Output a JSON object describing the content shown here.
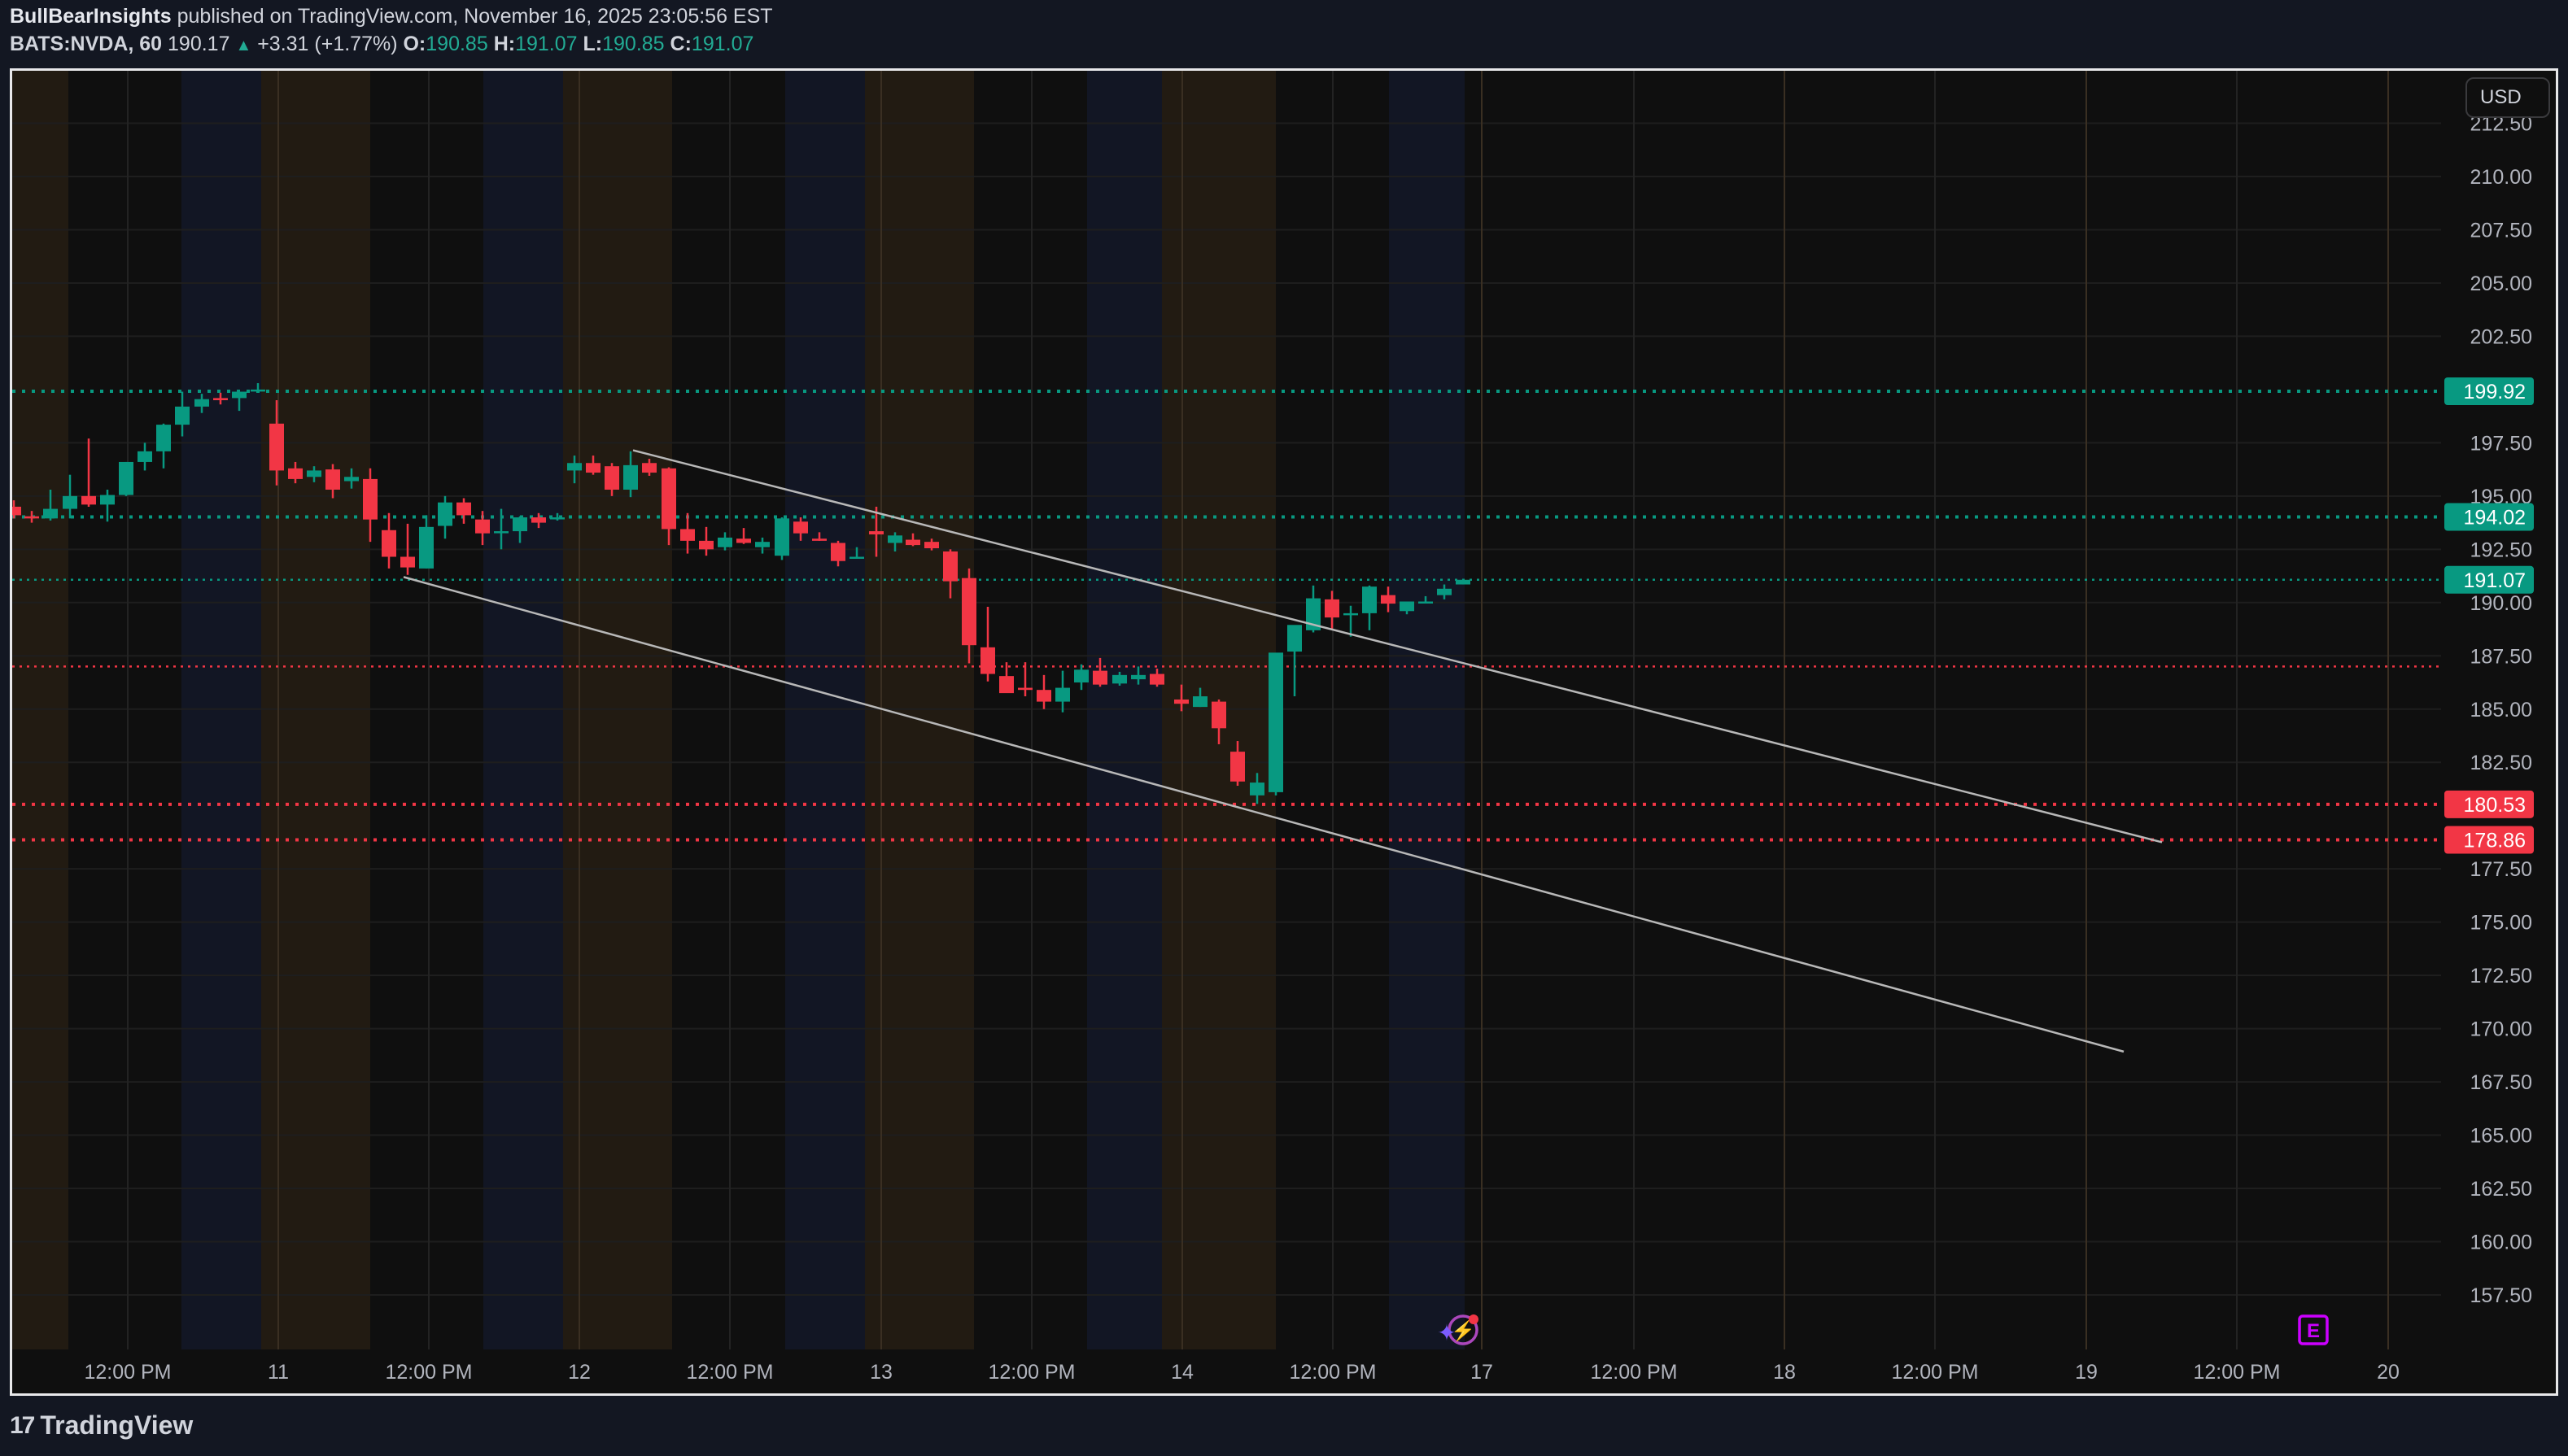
{
  "header": {
    "author": "BullBearInsights",
    "published_text": "published on TradingView.com, November 16, 2025 23:05:56 EST",
    "symbol": "BATS:NVDA, 60",
    "last": "190.17",
    "change": "+3.31 (+1.77%)",
    "o_label": "O:",
    "o": "190.85",
    "h_label": "H:",
    "h": "191.07",
    "l_label": "L:",
    "l": "190.85",
    "c_label": "C:",
    "c": "191.07",
    "up_arrow": "▲"
  },
  "currency_button": "USD",
  "branding": {
    "logo_mark": "17",
    "logo_text": "TradingView"
  },
  "colors": {
    "up": "#089981",
    "down": "#f23645",
    "grid": "#1e1e1e",
    "bg": "#0f0f0f",
    "session_pre": "#221b12",
    "session_post": "#121624",
    "trendline": "#b8b8b8",
    "earnings": "#cc00ff",
    "lightning": "#ab47bc"
  },
  "icons": {
    "earnings_label": "E",
    "lightning": "⚡",
    "sparkle": "✦"
  },
  "chart_data": {
    "type": "candlestick",
    "title": "BATS:NVDA, 60",
    "interval": "60 min",
    "ylabel": "USD",
    "ylim": [
      155.5,
      213.0
    ],
    "y_ticks": [
      "212.50",
      "210.00",
      "207.50",
      "205.00",
      "202.50",
      "197.50",
      "195.00",
      "192.50",
      "190.00",
      "187.50",
      "185.00",
      "182.50",
      "177.50",
      "175.00",
      "172.50",
      "170.00",
      "167.50",
      "165.00",
      "162.50",
      "160.00",
      "157.50"
    ],
    "x_ticks": [
      {
        "label": "12:00 PM",
        "x": 157
      },
      {
        "label": "11",
        "x": 342
      },
      {
        "label": "12:00 PM",
        "x": 527
      },
      {
        "label": "12",
        "x": 712
      },
      {
        "label": "12:00 PM",
        "x": 897
      },
      {
        "label": "13",
        "x": 1083
      },
      {
        "label": "12:00 PM",
        "x": 1268
      },
      {
        "label": "14",
        "x": 1453
      },
      {
        "label": "12:00 PM",
        "x": 1638
      },
      {
        "label": "17",
        "x": 1821
      },
      {
        "label": "12:00 PM",
        "x": 2008
      },
      {
        "label": "18",
        "x": 2193
      },
      {
        "label": "12:00 PM",
        "x": 2378
      },
      {
        "label": "19",
        "x": 2564
      },
      {
        "label": "12:00 PM",
        "x": 2749
      },
      {
        "label": "20",
        "x": 2935
      }
    ],
    "candles_columns": [
      "x",
      "open",
      "high",
      "low",
      "close"
    ],
    "candles": [
      [
        17,
        194.5,
        194.8,
        193.95,
        194.1
      ],
      [
        39,
        194.05,
        194.3,
        193.75,
        193.95
      ],
      [
        62,
        193.95,
        195.3,
        193.85,
        194.4
      ],
      [
        86,
        194.4,
        196.0,
        193.95,
        195.0
      ],
      [
        109,
        195.0,
        197.7,
        194.5,
        194.6
      ],
      [
        132,
        194.6,
        195.3,
        193.8,
        195.05
      ],
      [
        155,
        195.05,
        196.6,
        195.0,
        196.6
      ],
      [
        178,
        196.6,
        197.5,
        196.2,
        197.1
      ],
      [
        201,
        197.1,
        198.4,
        196.3,
        198.35
      ],
      [
        224,
        198.35,
        199.9,
        197.8,
        199.2
      ],
      [
        248,
        199.2,
        199.8,
        198.9,
        199.55
      ],
      [
        271,
        199.6,
        199.85,
        199.3,
        199.5
      ],
      [
        294,
        199.6,
        199.9,
        199.0,
        199.9
      ],
      [
        317,
        199.95,
        200.3,
        199.9,
        200.0
      ],
      [
        340,
        198.4,
        199.5,
        195.5,
        196.2
      ],
      [
        363,
        196.3,
        196.6,
        195.6,
        195.8
      ],
      [
        386,
        195.9,
        196.4,
        195.65,
        196.2
      ],
      [
        409,
        196.25,
        196.5,
        194.9,
        195.3
      ],
      [
        432,
        195.7,
        196.3,
        195.35,
        195.9
      ],
      [
        455,
        195.8,
        196.3,
        192.85,
        193.9
      ],
      [
        478,
        193.4,
        194.2,
        191.6,
        192.15
      ],
      [
        501,
        192.15,
        193.7,
        191.3,
        191.65
      ],
      [
        524,
        191.6,
        194.1,
        191.6,
        193.55
      ],
      [
        547,
        193.6,
        195.0,
        193.0,
        194.7
      ],
      [
        570,
        194.7,
        194.9,
        193.7,
        194.1
      ],
      [
        593,
        193.9,
        194.3,
        192.7,
        193.25
      ],
      [
        616,
        193.35,
        194.4,
        192.5,
        193.35
      ],
      [
        639,
        193.35,
        194.05,
        192.8,
        194.0
      ],
      [
        662,
        194.0,
        194.2,
        193.5,
        193.75
      ],
      [
        685,
        193.95,
        194.2,
        193.85,
        194.0
      ],
      [
        706,
        196.2,
        196.9,
        195.6,
        196.55
      ],
      [
        729,
        196.55,
        196.9,
        196.0,
        196.1
      ],
      [
        752,
        196.4,
        196.55,
        195.0,
        195.3
      ],
      [
        775,
        195.3,
        197.1,
        194.95,
        196.45
      ],
      [
        798,
        196.55,
        196.75,
        195.95,
        196.1
      ],
      [
        822,
        196.3,
        196.35,
        192.7,
        193.45
      ],
      [
        845,
        193.45,
        194.2,
        192.3,
        192.9
      ],
      [
        868,
        192.9,
        193.55,
        192.2,
        192.5
      ],
      [
        891,
        192.6,
        193.3,
        192.45,
        193.05
      ],
      [
        914,
        193.0,
        193.5,
        192.75,
        192.8
      ],
      [
        937,
        192.6,
        193.05,
        192.3,
        192.85
      ],
      [
        961,
        192.2,
        194.0,
        192.0,
        193.95
      ],
      [
        984,
        193.8,
        194.0,
        192.9,
        193.25
      ],
      [
        1007,
        193.0,
        193.3,
        192.9,
        192.9
      ],
      [
        1030,
        192.8,
        192.9,
        191.7,
        191.95
      ],
      [
        1053,
        192.15,
        192.6,
        192.15,
        192.15
      ],
      [
        1077,
        193.35,
        194.5,
        192.15,
        193.2
      ],
      [
        1100,
        192.8,
        193.3,
        192.4,
        193.15
      ],
      [
        1122,
        192.95,
        193.25,
        192.65,
        192.7
      ],
      [
        1145,
        192.85,
        193.0,
        192.45,
        192.55
      ],
      [
        1168,
        192.4,
        192.5,
        190.2,
        191.0
      ],
      [
        1191,
        191.15,
        191.6,
        187.15,
        188.0
      ],
      [
        1214,
        187.9,
        189.8,
        186.3,
        186.65
      ],
      [
        1237,
        186.55,
        187.2,
        185.9,
        185.75
      ],
      [
        1260,
        186.0,
        187.2,
        185.6,
        185.9
      ],
      [
        1283,
        185.9,
        186.6,
        185.0,
        185.35
      ],
      [
        1306,
        185.35,
        186.8,
        184.85,
        186.0
      ],
      [
        1329,
        186.25,
        187.1,
        185.9,
        186.85
      ],
      [
        1352,
        186.8,
        187.4,
        186.05,
        186.15
      ],
      [
        1376,
        186.2,
        186.75,
        186.1,
        186.6
      ],
      [
        1399,
        186.4,
        187.0,
        186.15,
        186.6
      ],
      [
        1422,
        186.65,
        186.9,
        186.05,
        186.15
      ],
      [
        1452,
        185.45,
        186.15,
        184.9,
        185.25
      ],
      [
        1475,
        185.1,
        186.0,
        185.1,
        185.6
      ],
      [
        1498,
        185.35,
        185.45,
        183.35,
        184.1
      ],
      [
        1521,
        183.0,
        183.5,
        181.4,
        181.6
      ],
      [
        1545,
        180.95,
        182.0,
        180.55,
        181.55
      ],
      [
        1568,
        181.1,
        187.55,
        180.95,
        187.65
      ],
      [
        1591,
        187.7,
        188.8,
        185.6,
        188.95
      ],
      [
        1614,
        188.7,
        190.8,
        188.6,
        190.2
      ],
      [
        1637,
        190.15,
        190.55,
        188.7,
        189.3
      ],
      [
        1660,
        189.45,
        189.85,
        188.4,
        189.5
      ],
      [
        1683,
        189.5,
        190.8,
        188.7,
        190.75
      ],
      [
        1706,
        190.35,
        190.75,
        189.55,
        189.95
      ],
      [
        1729,
        189.6,
        190.0,
        189.45,
        190.05
      ],
      [
        1752,
        190.05,
        190.3,
        190.05,
        190.05
      ],
      [
        1775,
        190.35,
        190.85,
        190.15,
        190.65
      ],
      [
        1798,
        190.85,
        191.07,
        190.85,
        191.07
      ]
    ],
    "horizontal_levels": [
      {
        "price": 199.92,
        "color": "#089981",
        "style": "dotted-thick",
        "label": "199.92"
      },
      {
        "price": 194.02,
        "color": "#089981",
        "style": "dotted-thick",
        "label": "194.02"
      },
      {
        "price": 191.07,
        "color": "#089981",
        "style": "dotted-thin",
        "label": "191.07"
      },
      {
        "price": 187.0,
        "color": "#f23645",
        "style": "dotted-thin",
        "label": ""
      },
      {
        "price": 180.53,
        "color": "#f23645",
        "style": "dotted-thick",
        "label": "180.53"
      },
      {
        "price": 178.86,
        "color": "#f23645",
        "style": "dotted-thick",
        "label": "178.86"
      }
    ],
    "trendlines": [
      {
        "name": "upper-channel",
        "x1": 778,
        "y1p": 197.15,
        "x2": 2657,
        "y2p": 178.75
      },
      {
        "name": "lower-channel",
        "x1": 496,
        "y1p": 191.2,
        "x2": 2610,
        "y2p": 168.92
      }
    ],
    "sessions": [
      {
        "type": "pre",
        "x1": 0,
        "x2": 84
      },
      {
        "type": "post",
        "x1": 223,
        "x2": 321
      },
      {
        "type": "pre",
        "x1": 321,
        "x2": 455
      },
      {
        "type": "post",
        "x1": 594,
        "x2": 692
      },
      {
        "type": "pre",
        "x1": 692,
        "x2": 826
      },
      {
        "type": "post",
        "x1": 965,
        "x2": 1063
      },
      {
        "type": "pre",
        "x1": 1063,
        "x2": 1197
      },
      {
        "type": "post",
        "x1": 1336,
        "x2": 1428
      },
      {
        "type": "pre",
        "x1": 1428,
        "x2": 1568
      },
      {
        "type": "post",
        "x1": 1707,
        "x2": 1800
      }
    ],
    "grid": true
  }
}
